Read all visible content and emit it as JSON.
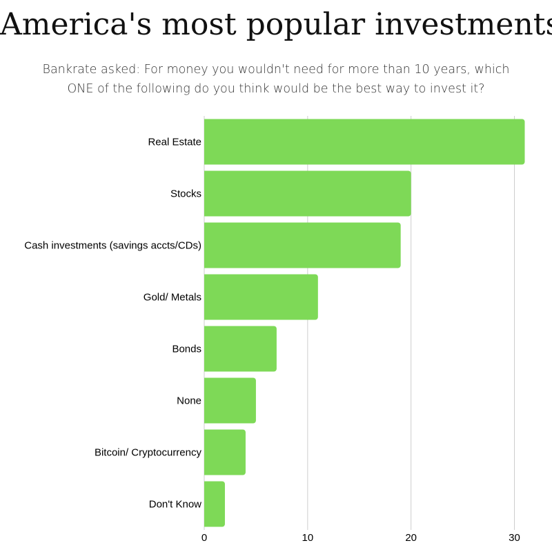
{
  "chart_data": {
    "type": "bar",
    "orientation": "horizontal",
    "title": "America's most popular investments",
    "subtitle": [
      "Bankrate asked: For money you wouldn't need for more than 10 years, which",
      "ONE of the following do you think would be the best way to invest it?"
    ],
    "categories": [
      "Real Estate",
      "Stocks",
      "Cash investments (savings accts/CDs)",
      "Gold/ Metals",
      "Bonds",
      "None",
      "Bitcoin/ Cryptocurrency",
      "Don't Know"
    ],
    "values": [
      31,
      20,
      19,
      11,
      7,
      5,
      4,
      2
    ],
    "xlabel": "",
    "ylabel": "",
    "xlim": [
      0,
      31.5
    ],
    "xticks": [
      0,
      10,
      20,
      30
    ],
    "grid": "vertical",
    "legend": "none",
    "bar_color": "#7ed957",
    "grid_color": "#cccccc"
  }
}
